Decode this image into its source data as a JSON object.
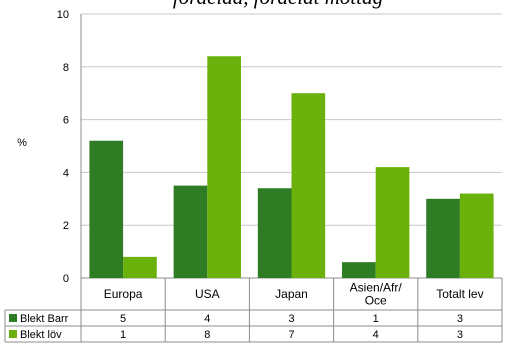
{
  "chart_data": {
    "type": "bar",
    "title": "",
    "xlabel": "",
    "ylabel": "%",
    "ylim": [
      0,
      10
    ],
    "y_ticks": [
      0,
      2,
      4,
      6,
      8,
      10
    ],
    "grid": "horizontal",
    "legend": "data-table-left",
    "categories": [
      "Europa",
      "USA",
      "Japan",
      "Asien/Afr/\nOce",
      "Totalt lev"
    ],
    "series": [
      {
        "name": "Blekt Barr",
        "color": "#2e7d24",
        "values": [
          5.2,
          3.5,
          3.4,
          0.6,
          3.0
        ],
        "table_values": [
          "5",
          "4",
          "3",
          "1",
          "3"
        ]
      },
      {
        "name": "Blekt löv",
        "color": "#6ab10c",
        "values": [
          0.8,
          8.4,
          7.0,
          4.2,
          3.2
        ],
        "table_values": [
          "1",
          "8",
          "7",
          "4",
          "3"
        ]
      }
    ]
  }
}
